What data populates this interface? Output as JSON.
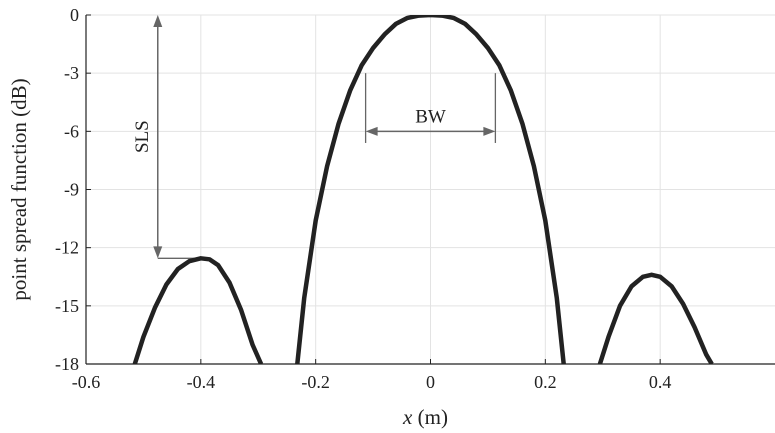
{
  "chart_data": {
    "type": "line",
    "title": "",
    "xlabel_var": "x",
    "xlabel_unit": " (m)",
    "ylabel": "point spread function (dB)",
    "xlim": [
      -0.6,
      0.6
    ],
    "ylim": [
      -18,
      0
    ],
    "xticks": [
      -0.6,
      -0.4,
      -0.2,
      0,
      0.2,
      0.4
    ],
    "xtick_labels": [
      "-0.6",
      "-0.4",
      "-0.2",
      "0",
      "0.2",
      "0.4"
    ],
    "yticks": [
      0,
      -3,
      -6,
      -9,
      -12,
      -15,
      -18
    ],
    "ytick_labels": [
      "0",
      "-3",
      "-6",
      "-9",
      "-12",
      "-15",
      "-18"
    ],
    "grid": true,
    "legend": "none",
    "colors": {
      "line": "#222222",
      "grid": "#e3e3e3",
      "axis": "#222222",
      "annotation": "#666666"
    },
    "series": [
      {
        "segments": [
          {
            "x": [
              -0.515,
              -0.5,
              -0.48,
              -0.46,
              -0.44,
              -0.42,
              -0.4,
              -0.385,
              -0.37,
              -0.35,
              -0.33,
              -0.31,
              -0.295
            ],
            "y": [
              -18.0,
              -16.6,
              -15.1,
              -13.9,
              -13.1,
              -12.7,
              -12.55,
              -12.6,
              -12.9,
              -13.8,
              -15.2,
              -17.0,
              -18.0
            ]
          },
          {
            "x": [
              -0.232,
              -0.22,
              -0.2,
              -0.18,
              -0.16,
              -0.14,
              -0.12,
              -0.1,
              -0.08,
              -0.06,
              -0.04,
              -0.02,
              0.0,
              0.02,
              0.04,
              0.06,
              0.08,
              0.1,
              0.12,
              0.14,
              0.16,
              0.18,
              0.2,
              0.22,
              0.232
            ],
            "y": [
              -18.0,
              -14.6,
              -10.6,
              -7.8,
              -5.6,
              -3.9,
              -2.6,
              -1.7,
              -1.0,
              -0.45,
              -0.15,
              -0.03,
              0.0,
              -0.03,
              -0.15,
              -0.45,
              -1.0,
              -1.7,
              -2.6,
              -3.9,
              -5.6,
              -7.8,
              -10.6,
              -14.6,
              -18.0
            ]
          },
          {
            "x": [
              0.295,
              0.31,
              0.33,
              0.35,
              0.37,
              0.385,
              0.4,
              0.42,
              0.44,
              0.46,
              0.48,
              0.49
            ],
            "y": [
              -18.0,
              -16.6,
              -15.0,
              -14.0,
              -13.5,
              -13.4,
              -13.5,
              -14.0,
              -14.9,
              -16.1,
              -17.5,
              -18.0
            ]
          }
        ]
      }
    ],
    "annotations": {
      "bw": {
        "label": "BW",
        "x_from": -0.113,
        "x_to": 0.113,
        "y": -6.0,
        "marker_y_top": -3.0,
        "marker_y_bottom": -6.6
      },
      "sls": {
        "label": "SLS",
        "x": -0.475,
        "y_from": 0.0,
        "y_to": -12.55,
        "ref_x_from": -0.475,
        "ref_x_to": -0.39
      }
    }
  }
}
